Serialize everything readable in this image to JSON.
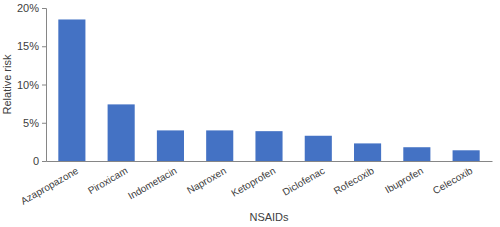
{
  "chart_data": {
    "type": "bar",
    "x_label": "NSAIDs",
    "y_label": "Relative risk",
    "categories": [
      "Azapropazone",
      "Piroxicam",
      "Indometacin",
      "Naproxen",
      "Ketoprofen",
      "Diclofenac",
      "Rofecoxib",
      "Ibuprofen",
      "Celecoxib"
    ],
    "values": [
      18.5,
      7.4,
      4.0,
      4.0,
      3.9,
      3.3,
      2.3,
      1.8,
      1.4
    ],
    "color": "#4472c4",
    "ylim": [
      0,
      20
    ],
    "yticks": [
      0,
      {
        "value": 5,
        "label": "5%"
      },
      {
        "value": 10,
        "label": "10%"
      },
      {
        "value": 15,
        "label": "15%"
      },
      {
        "value": 20,
        "label": "20%"
      }
    ],
    "grid": false
  }
}
